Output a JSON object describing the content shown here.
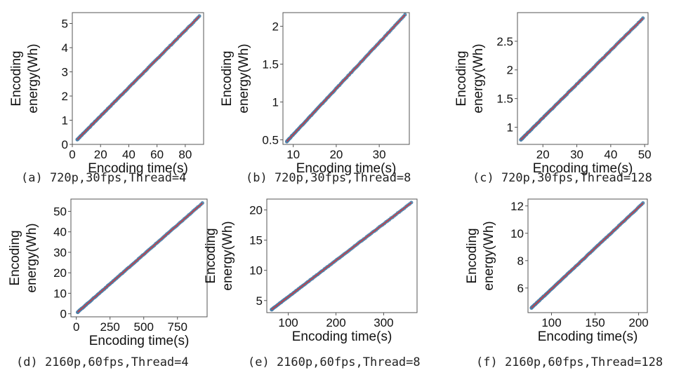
{
  "chart_data": [
    {
      "type": "scatter",
      "panel": "a",
      "caption": "(a) 720p,30fps,Thread=4",
      "xlabel": "Encoding time(s)",
      "ylabel": [
        "Encoding",
        "energy(Wh)"
      ],
      "xlim": [
        0,
        93
      ],
      "ylim": [
        0,
        5.45
      ],
      "xticks": [
        0,
        20,
        40,
        60,
        80
      ],
      "yticks": [
        0,
        1,
        2,
        3,
        4,
        5
      ],
      "x_range": [
        3.5,
        90
      ],
      "y_range": [
        0.2,
        5.3
      ],
      "n_points": 110,
      "fit_line": [
        [
          3.5,
          0.2
        ],
        [
          90,
          5.3
        ]
      ],
      "point_color": "#4a7ea8",
      "line_color": "#e03030"
    },
    {
      "type": "scatter",
      "panel": "b",
      "caption": "(b) 720p,30fps,Thread=8",
      "xlabel": "Encoding time(s)",
      "ylabel": [
        "Encoding",
        "energy(Wh)"
      ],
      "xlim": [
        7.6,
        37
      ],
      "ylim": [
        0.44,
        2.18
      ],
      "xticks": [
        10,
        20,
        30
      ],
      "yticks": [
        0.5,
        1,
        1.5,
        2
      ],
      "tick_labels_y": [
        "0.5",
        "1",
        "1.5",
        "2"
      ],
      "x_range": [
        8.5,
        36
      ],
      "y_range": [
        0.48,
        2.15
      ],
      "n_points": 110,
      "fit_line": [
        [
          8.5,
          0.48
        ],
        [
          36,
          2.15
        ]
      ],
      "point_color": "#4a7ea8",
      "line_color": "#e03030"
    },
    {
      "type": "scatter",
      "panel": "c",
      "caption": "(c) 720p,30fps,Thread=128",
      "xlabel": "Encoding time(s)",
      "ylabel": [
        "Encoding",
        "energy(Wh)"
      ],
      "xlim": [
        12.5,
        51
      ],
      "ylim": [
        0.7,
        3.0
      ],
      "xticks": [
        20,
        30,
        40,
        50
      ],
      "yticks": [
        1,
        1.5,
        2,
        2.5
      ],
      "tick_labels_y": [
        "1",
        "1.5",
        "2",
        "2.5"
      ],
      "x_range": [
        13.5,
        49.5
      ],
      "y_range": [
        0.78,
        2.9
      ],
      "n_points": 110,
      "fit_line": [
        [
          13.5,
          0.78
        ],
        [
          49.5,
          2.9
        ]
      ],
      "point_color": "#4a7ea8",
      "line_color": "#e03030"
    },
    {
      "type": "scatter",
      "panel": "d",
      "caption": "(d) 2160p,60fps,Thread=4",
      "xlabel": "Encoding time(s)",
      "ylabel": [
        "Encoding",
        "energy(Wh)"
      ],
      "xlim": [
        -40,
        970
      ],
      "ylim": [
        -1.5,
        56
      ],
      "xticks": [
        0,
        250,
        500,
        750
      ],
      "yticks": [
        0,
        10,
        20,
        30,
        40,
        50
      ],
      "x_range": [
        10,
        935
      ],
      "y_range": [
        0.8,
        54
      ],
      "n_points": 110,
      "fit_line": [
        [
          10,
          0.8
        ],
        [
          935,
          54
        ]
      ],
      "point_color": "#4a7ea8",
      "line_color": "#e03030"
    },
    {
      "type": "scatter",
      "panel": "e",
      "caption": "(e) 2160p,60fps,Thread=8",
      "xlabel": "Encoding time(s)",
      "ylabel": [
        "Encoding",
        "energy(Wh)"
      ],
      "xlim": [
        55,
        370
      ],
      "ylim": [
        3.0,
        21.8
      ],
      "xticks": [
        100,
        200,
        300
      ],
      "yticks": [
        5,
        10,
        15,
        20
      ],
      "x_range": [
        65,
        358
      ],
      "y_range": [
        3.5,
        21.2
      ],
      "n_points": 110,
      "fit_line": [
        [
          65,
          3.5
        ],
        [
          358,
          21.2
        ]
      ],
      "point_color": "#4a7ea8",
      "line_color": "#e03030"
    },
    {
      "type": "scatter",
      "panel": "f",
      "caption": "(f) 2160p,60fps,Thread=128",
      "xlabel": "Encoding time(s)",
      "ylabel": [
        "Encoding",
        "energy(Wh)"
      ],
      "xlim": [
        73,
        210
      ],
      "ylim": [
        4.2,
        12.5
      ],
      "xticks": [
        100,
        150,
        200
      ],
      "yticks": [
        6,
        8,
        10,
        12
      ],
      "x_range": [
        77,
        205
      ],
      "y_range": [
        4.55,
        12.2
      ],
      "n_points": 110,
      "fit_line": [
        [
          77,
          4.55
        ],
        [
          205,
          12.2
        ]
      ],
      "point_color": "#4a7ea8",
      "line_color": "#e03030"
    }
  ]
}
